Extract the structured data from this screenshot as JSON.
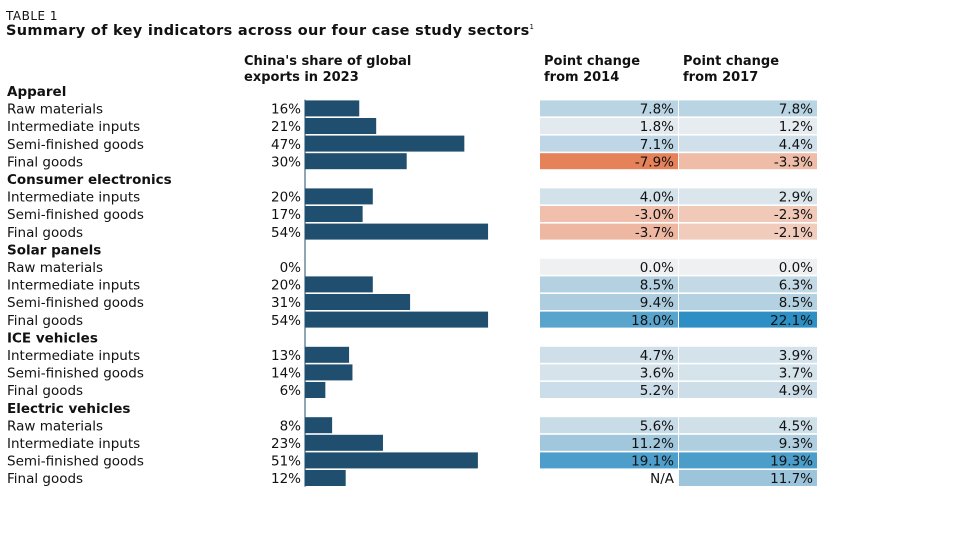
{
  "header": {
    "table_label": "TABLE 1",
    "title": "Summary of key indicators across our four case study sectors",
    "footnote_mark": "1"
  },
  "columns": {
    "share": [
      "China's share of global",
      "exports in 2023"
    ],
    "change_2014": [
      "Point change",
      "from 2014"
    ],
    "change_2017": [
      "Point change",
      "from 2017"
    ]
  },
  "colors": {
    "bar": "#1f4e6e",
    "axis": "#1f4e6e"
  },
  "chart_data": {
    "type": "table",
    "title": "Summary of key indicators across our four case study sectors",
    "bar_max": 100,
    "sections": [
      {
        "name": "Apparel",
        "rows": [
          {
            "label": "Raw materials",
            "share": 16,
            "share_text": "16%",
            "c2014": 7.8,
            "c2014_text": "7.8%",
            "c2017": 7.8,
            "c2017_text": "7.8%"
          },
          {
            "label": "Intermediate inputs",
            "share": 21,
            "share_text": "21%",
            "c2014": 1.8,
            "c2014_text": "1.8%",
            "c2017": 1.2,
            "c2017_text": "1.2%"
          },
          {
            "label": "Semi-finished goods",
            "share": 47,
            "share_text": "47%",
            "c2014": 7.1,
            "c2014_text": "7.1%",
            "c2017": 4.4,
            "c2017_text": "4.4%"
          },
          {
            "label": "Final goods",
            "share": 30,
            "share_text": "30%",
            "c2014": -7.9,
            "c2014_text": "-7.9%",
            "c2017": -3.3,
            "c2017_text": "-3.3%"
          }
        ]
      },
      {
        "name": "Consumer electronics",
        "rows": [
          {
            "label": "Intermediate inputs",
            "share": 20,
            "share_text": "20%",
            "c2014": 4.0,
            "c2014_text": "4.0%",
            "c2017": 2.9,
            "c2017_text": "2.9%"
          },
          {
            "label": "Semi-finished goods",
            "share": 17,
            "share_text": "17%",
            "c2014": -3.0,
            "c2014_text": "-3.0%",
            "c2017": -2.3,
            "c2017_text": "-2.3%"
          },
          {
            "label": "Final goods",
            "share": 54,
            "share_text": "54%",
            "c2014": -3.7,
            "c2014_text": "-3.7%",
            "c2017": -2.1,
            "c2017_text": "-2.1%"
          }
        ]
      },
      {
        "name": "Solar panels",
        "rows": [
          {
            "label": "Raw materials",
            "share": 0,
            "share_text": "0%",
            "c2014": 0.0,
            "c2014_text": "0.0%",
            "c2017": 0.0,
            "c2017_text": "0.0%"
          },
          {
            "label": "Intermediate inputs",
            "share": 20,
            "share_text": "20%",
            "c2014": 8.5,
            "c2014_text": "8.5%",
            "c2017": 6.3,
            "c2017_text": "6.3%"
          },
          {
            "label": "Semi-finished goods",
            "share": 31,
            "share_text": "31%",
            "c2014": 9.4,
            "c2014_text": "9.4%",
            "c2017": 8.5,
            "c2017_text": "8.5%"
          },
          {
            "label": "Final goods",
            "share": 54,
            "share_text": "54%",
            "c2014": 18.0,
            "c2014_text": "18.0%",
            "c2017": 22.1,
            "c2017_text": "22.1%"
          }
        ]
      },
      {
        "name": "ICE vehicles",
        "rows": [
          {
            "label": "Intermediate inputs",
            "share": 13,
            "share_text": "13%",
            "c2014": 4.7,
            "c2014_text": "4.7%",
            "c2017": 3.9,
            "c2017_text": "3.9%"
          },
          {
            "label": "Semi-finished goods",
            "share": 14,
            "share_text": "14%",
            "c2014": 3.6,
            "c2014_text": "3.6%",
            "c2017": 3.7,
            "c2017_text": "3.7%"
          },
          {
            "label": "Final goods",
            "share": 6,
            "share_text": "6%",
            "c2014": 5.2,
            "c2014_text": "5.2%",
            "c2017": 4.9,
            "c2017_text": "4.9%"
          }
        ]
      },
      {
        "name": "Electric vehicles",
        "rows": [
          {
            "label": "Raw materials",
            "share": 8,
            "share_text": "8%",
            "c2014": 5.6,
            "c2014_text": "5.6%",
            "c2017": 4.5,
            "c2017_text": "4.5%"
          },
          {
            "label": "Intermediate inputs",
            "share": 23,
            "share_text": "23%",
            "c2014": 11.2,
            "c2014_text": "11.2%",
            "c2017": 9.3,
            "c2017_text": "9.3%"
          },
          {
            "label": "Semi-finished goods",
            "share": 51,
            "share_text": "51%",
            "c2014": 19.1,
            "c2014_text": "19.1%",
            "c2017": 19.3,
            "c2017_text": "19.3%"
          },
          {
            "label": "Final goods",
            "share": 12,
            "share_text": "12%",
            "c2014": null,
            "c2014_text": "N/A",
            "c2017": 11.7,
            "c2017_text": "11.7%"
          }
        ]
      }
    ]
  }
}
